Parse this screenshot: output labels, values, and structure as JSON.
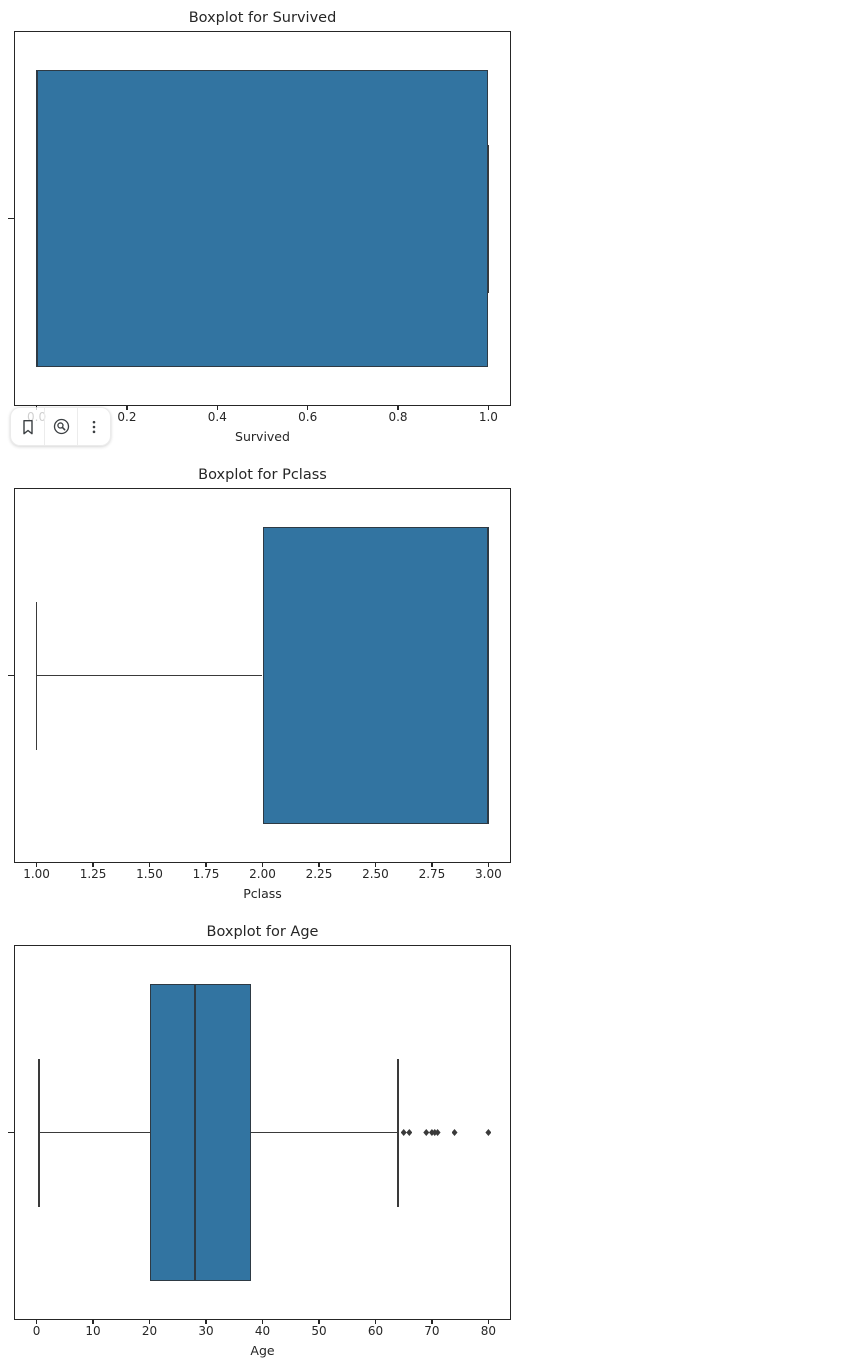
{
  "toolbar": {
    "icons": [
      {
        "name": "bookmark"
      },
      {
        "name": "lens-search"
      },
      {
        "name": "more-options"
      }
    ]
  },
  "style": {
    "box_fill": "#3274a1",
    "box_edge": "#2e3a44",
    "line_color": "#3a3a3a",
    "text_color": "#262626",
    "outlier_color": "#3a3a3a"
  },
  "chart_data": [
    {
      "type": "boxplot",
      "orientation": "horizontal",
      "title": "Boxplot for Survived",
      "xlabel": "Survived",
      "ylabel": "",
      "grid": false,
      "xlim": [
        -0.05,
        1.05
      ],
      "tick_values": [
        0.0,
        0.2,
        0.4,
        0.6,
        0.8,
        1.0
      ],
      "tick_labels": [
        "0.0",
        "0.2",
        "0.4",
        "0.6",
        "0.8",
        "1.0"
      ],
      "box": {
        "q1": 0.0,
        "median": 0.0,
        "q3": 1.0,
        "whisker_low": 0.0,
        "whisker_high": 1.0,
        "outliers": []
      }
    },
    {
      "type": "boxplot",
      "orientation": "horizontal",
      "title": "Boxplot for Pclass",
      "xlabel": "Pclass",
      "ylabel": "",
      "grid": false,
      "xlim": [
        0.9,
        3.1
      ],
      "tick_values": [
        1.0,
        1.25,
        1.5,
        1.75,
        2.0,
        2.25,
        2.5,
        2.75,
        3.0
      ],
      "tick_labels": [
        "1.00",
        "1.25",
        "1.50",
        "1.75",
        "2.00",
        "2.25",
        "2.50",
        "2.75",
        "3.00"
      ],
      "box": {
        "q1": 2.0,
        "median": 3.0,
        "q3": 3.0,
        "whisker_low": 1.0,
        "whisker_high": 3.0,
        "outliers": []
      }
    },
    {
      "type": "boxplot",
      "orientation": "horizontal",
      "title": "Boxplot for Age",
      "xlabel": "Age",
      "ylabel": "",
      "grid": false,
      "xlim": [
        -4.0,
        84.0
      ],
      "tick_values": [
        0,
        10,
        20,
        30,
        40,
        50,
        60,
        70,
        80
      ],
      "tick_labels": [
        "0",
        "10",
        "20",
        "30",
        "40",
        "50",
        "60",
        "70",
        "80"
      ],
      "box": {
        "q1": 20.125,
        "median": 28.0,
        "q3": 38.0,
        "whisker_low": 0.42,
        "whisker_high": 64.0,
        "outliers": [
          65,
          66,
          69,
          70,
          70.5,
          71,
          74,
          80
        ]
      }
    }
  ]
}
